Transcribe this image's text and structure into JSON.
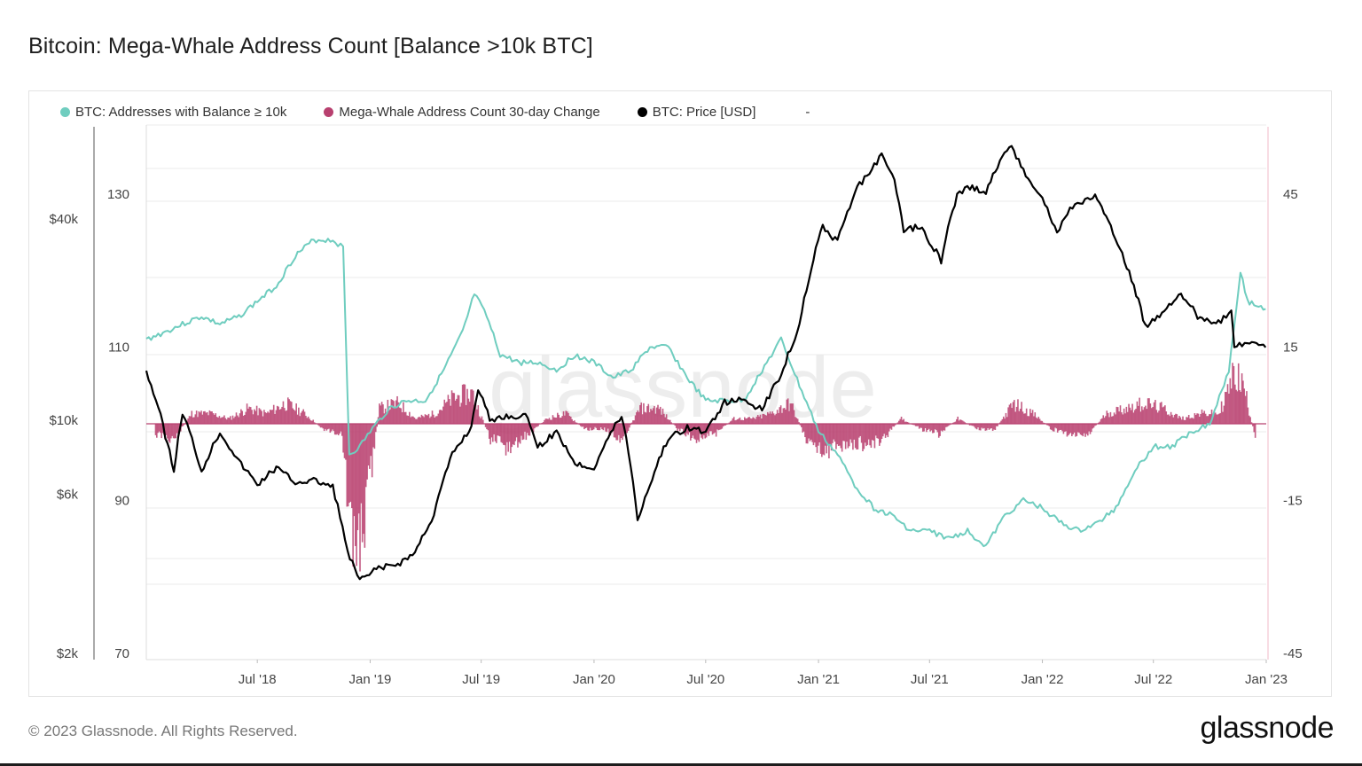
{
  "title": "Bitcoin: Mega-Whale Address Count [Balance >10k BTC]",
  "footer": {
    "copyright": "© 2023 Glassnode. All Rights Reserved.",
    "logo": "glassnode"
  },
  "watermark": "glassnode",
  "legend": {
    "items": [
      {
        "label": "BTC: Addresses with Balance ≥ 10k",
        "color": "#6fcdbf"
      },
      {
        "label": "Mega-Whale Address Count 30-day Change",
        "color": "#b8406f"
      },
      {
        "label": "BTC: Price [USD]",
        "color": "#000000"
      }
    ],
    "extra": "-"
  },
  "chart_data": {
    "type": "line",
    "title": "Bitcoin: Mega-Whale Address Count [Balance >10k BTC]",
    "x_ticks": [
      "Jul '18",
      "Jan '19",
      "Jul '19",
      "Jan '20",
      "Jul '20",
      "Jan '21",
      "Jul '21",
      "Jan '22",
      "Jul '22",
      "Jan '23"
    ],
    "x_range": [
      "2018-01-01",
      "2023-01-01"
    ],
    "axes": {
      "price": {
        "ticks": [
          "$2k",
          "$6k",
          "$10k",
          "$40k"
        ],
        "tick_values": [
          2000,
          6000,
          10000,
          40000
        ],
        "scale": "log",
        "range": [
          2000,
          120000
        ]
      },
      "addresses": {
        "ticks": [
          "70",
          "90",
          "110",
          "130"
        ],
        "tick_values": [
          70,
          90,
          110,
          130
        ],
        "range": [
          70,
          140
        ]
      },
      "change": {
        "ticks": [
          "-45",
          "-15",
          "15",
          "45"
        ],
        "tick_values": [
          -45,
          -15,
          15,
          45
        ],
        "range": [
          -45,
          60
        ]
      }
    },
    "series": [
      {
        "name": "BTC: Addresses with Balance ≥ 10k",
        "axis": "addresses",
        "color": "#6fcdbf",
        "points": [
          [
            "2018-01-01",
            111
          ],
          [
            "2018-02-01",
            112
          ],
          [
            "2018-03-01",
            113
          ],
          [
            "2018-04-01",
            114
          ],
          [
            "2018-05-01",
            113
          ],
          [
            "2018-06-01",
            114
          ],
          [
            "2018-07-01",
            116
          ],
          [
            "2018-08-01",
            118
          ],
          [
            "2018-09-01",
            122
          ],
          [
            "2018-10-01",
            124
          ],
          [
            "2018-11-01",
            124
          ],
          [
            "2018-11-18",
            123
          ],
          [
            "2018-11-28",
            96
          ],
          [
            "2018-12-15",
            97
          ],
          [
            "2019-01-01",
            99
          ],
          [
            "2019-02-01",
            102
          ],
          [
            "2019-03-01",
            103
          ],
          [
            "2019-04-01",
            103
          ],
          [
            "2019-05-01",
            107
          ],
          [
            "2019-06-01",
            112
          ],
          [
            "2019-06-20",
            117
          ],
          [
            "2019-07-10",
            114
          ],
          [
            "2019-08-01",
            109
          ],
          [
            "2019-09-01",
            108
          ],
          [
            "2019-10-01",
            108
          ],
          [
            "2019-11-01",
            107
          ],
          [
            "2019-12-01",
            109
          ],
          [
            "2020-01-01",
            108
          ],
          [
            "2020-02-01",
            106
          ],
          [
            "2020-03-01",
            107
          ],
          [
            "2020-04-01",
            110
          ],
          [
            "2020-05-01",
            110
          ],
          [
            "2020-06-01",
            106
          ],
          [
            "2020-07-01",
            103
          ],
          [
            "2020-08-01",
            103
          ],
          [
            "2020-09-01",
            103
          ],
          [
            "2020-10-01",
            107
          ],
          [
            "2020-11-01",
            111
          ],
          [
            "2020-12-01",
            105
          ],
          [
            "2021-01-01",
            99
          ],
          [
            "2021-02-01",
            96
          ],
          [
            "2021-03-01",
            92
          ],
          [
            "2021-04-01",
            89
          ],
          [
            "2021-05-01",
            88
          ],
          [
            "2021-06-01",
            86
          ],
          [
            "2021-07-01",
            86
          ],
          [
            "2021-08-01",
            85
          ],
          [
            "2021-09-01",
            86
          ],
          [
            "2021-10-01",
            84
          ],
          [
            "2021-11-01",
            88
          ],
          [
            "2021-12-01",
            90
          ],
          [
            "2022-01-01",
            89
          ],
          [
            "2022-02-01",
            87
          ],
          [
            "2022-03-01",
            86
          ],
          [
            "2022-04-01",
            87
          ],
          [
            "2022-05-01",
            89
          ],
          [
            "2022-06-01",
            94
          ],
          [
            "2022-07-01",
            97
          ],
          [
            "2022-08-01",
            97
          ],
          [
            "2022-09-01",
            99
          ],
          [
            "2022-10-01",
            100
          ],
          [
            "2022-11-01",
            107
          ],
          [
            "2022-11-20",
            120
          ],
          [
            "2022-12-01",
            116
          ],
          [
            "2022-12-31",
            115
          ]
        ]
      },
      {
        "name": "Mega-Whale Address Count 30-day Change",
        "axis": "change",
        "color": "#b8406f",
        "type": "bar",
        "points": [
          [
            "2018-01-15",
            -2
          ],
          [
            "2018-02-15",
            -3
          ],
          [
            "2018-03-15",
            2
          ],
          [
            "2018-04-15",
            2
          ],
          [
            "2018-05-15",
            1
          ],
          [
            "2018-06-15",
            3
          ],
          [
            "2018-07-15",
            2
          ],
          [
            "2018-08-15",
            4
          ],
          [
            "2018-09-15",
            2
          ],
          [
            "2018-10-15",
            -1
          ],
          [
            "2018-11-15",
            -2
          ],
          [
            "2018-12-01",
            -25
          ],
          [
            "2018-12-20",
            -20
          ],
          [
            "2019-01-15",
            3
          ],
          [
            "2019-02-15",
            4
          ],
          [
            "2019-03-15",
            1
          ],
          [
            "2019-04-15",
            2
          ],
          [
            "2019-05-15",
            5
          ],
          [
            "2019-06-15",
            6
          ],
          [
            "2019-07-15",
            -3
          ],
          [
            "2019-08-15",
            -5
          ],
          [
            "2019-09-15",
            -2
          ],
          [
            "2019-10-15",
            1
          ],
          [
            "2019-11-15",
            2
          ],
          [
            "2019-12-15",
            -1
          ],
          [
            "2020-01-15",
            -1
          ],
          [
            "2020-02-15",
            -3
          ],
          [
            "2020-03-15",
            3
          ],
          [
            "2020-04-15",
            3
          ],
          [
            "2020-05-15",
            -1
          ],
          [
            "2020-06-15",
            -3
          ],
          [
            "2020-07-15",
            -2
          ],
          [
            "2020-08-15",
            1
          ],
          [
            "2020-09-15",
            1
          ],
          [
            "2020-10-15",
            2
          ],
          [
            "2020-11-15",
            4
          ],
          [
            "2020-12-15",
            -4
          ],
          [
            "2021-01-15",
            -5
          ],
          [
            "2021-02-15",
            -4
          ],
          [
            "2021-03-15",
            -4
          ],
          [
            "2021-04-15",
            -3
          ],
          [
            "2021-05-15",
            1
          ],
          [
            "2021-06-15",
            -1
          ],
          [
            "2021-07-15",
            -2
          ],
          [
            "2021-08-15",
            1
          ],
          [
            "2021-09-15",
            -1
          ],
          [
            "2021-10-15",
            -1
          ],
          [
            "2021-11-15",
            4
          ],
          [
            "2021-12-15",
            2
          ],
          [
            "2022-01-15",
            -1
          ],
          [
            "2022-02-15",
            -2
          ],
          [
            "2022-03-15",
            -2
          ],
          [
            "2022-04-15",
            2
          ],
          [
            "2022-05-15",
            3
          ],
          [
            "2022-06-15",
            4
          ],
          [
            "2022-07-15",
            3
          ],
          [
            "2022-08-15",
            1
          ],
          [
            "2022-09-15",
            2
          ],
          [
            "2022-10-15",
            2
          ],
          [
            "2022-11-10",
            10
          ],
          [
            "2022-11-25",
            7
          ],
          [
            "2022-12-15",
            -4
          ]
        ]
      },
      {
        "name": "BTC: Price [USD]",
        "axis": "price",
        "color": "#000000",
        "points": [
          [
            "2018-01-01",
            14000
          ],
          [
            "2018-02-01",
            9000
          ],
          [
            "2018-02-15",
            7000
          ],
          [
            "2018-03-01",
            10500
          ],
          [
            "2018-04-01",
            7000
          ],
          [
            "2018-05-01",
            9200
          ],
          [
            "2018-06-01",
            7500
          ],
          [
            "2018-07-01",
            6400
          ],
          [
            "2018-08-01",
            7200
          ],
          [
            "2018-09-01",
            6500
          ],
          [
            "2018-10-01",
            6600
          ],
          [
            "2018-11-01",
            6300
          ],
          [
            "2018-11-25",
            4000
          ],
          [
            "2018-12-15",
            3300
          ],
          [
            "2019-01-15",
            3600
          ],
          [
            "2019-02-15",
            3700
          ],
          [
            "2019-03-15",
            4000
          ],
          [
            "2019-04-15",
            5200
          ],
          [
            "2019-05-15",
            7900
          ],
          [
            "2019-06-15",
            9500
          ],
          [
            "2019-06-26",
            12500
          ],
          [
            "2019-07-15",
            10000
          ],
          [
            "2019-08-15",
            10300
          ],
          [
            "2019-09-15",
            10200
          ],
          [
            "2019-10-01",
            8300
          ],
          [
            "2019-11-01",
            9200
          ],
          [
            "2019-12-01",
            7400
          ],
          [
            "2020-01-01",
            7200
          ],
          [
            "2020-02-01",
            9400
          ],
          [
            "2020-02-15",
            10300
          ],
          [
            "2020-03-12",
            5000
          ],
          [
            "2020-04-01",
            6400
          ],
          [
            "2020-05-01",
            8800
          ],
          [
            "2020-06-01",
            9500
          ],
          [
            "2020-07-01",
            9200
          ],
          [
            "2020-08-01",
            11300
          ],
          [
            "2020-09-01",
            11500
          ],
          [
            "2020-10-01",
            10700
          ],
          [
            "2020-11-01",
            13700
          ],
          [
            "2020-12-01",
            19000
          ],
          [
            "2021-01-08",
            38000
          ],
          [
            "2021-02-01",
            34000
          ],
          [
            "2021-03-01",
            48000
          ],
          [
            "2021-04-14",
            62000
          ],
          [
            "2021-05-01",
            55000
          ],
          [
            "2021-05-20",
            37000
          ],
          [
            "2021-06-15",
            38000
          ],
          [
            "2021-07-20",
            30000
          ],
          [
            "2021-08-15",
            47000
          ],
          [
            "2021-09-05",
            50000
          ],
          [
            "2021-10-01",
            48000
          ],
          [
            "2021-11-08",
            67000
          ],
          [
            "2021-12-01",
            56000
          ],
          [
            "2022-01-01",
            46000
          ],
          [
            "2022-01-25",
            36000
          ],
          [
            "2022-02-15",
            43000
          ],
          [
            "2022-03-28",
            47000
          ],
          [
            "2022-04-15",
            40000
          ],
          [
            "2022-05-15",
            30000
          ],
          [
            "2022-06-18",
            19000
          ],
          [
            "2022-07-15",
            21000
          ],
          [
            "2022-08-15",
            24000
          ],
          [
            "2022-09-15",
            20000
          ],
          [
            "2022-10-15",
            19500
          ],
          [
            "2022-11-05",
            21000
          ],
          [
            "2022-11-10",
            16500
          ],
          [
            "2022-12-01",
            17000
          ],
          [
            "2022-12-31",
            16500
          ]
        ]
      }
    ]
  }
}
